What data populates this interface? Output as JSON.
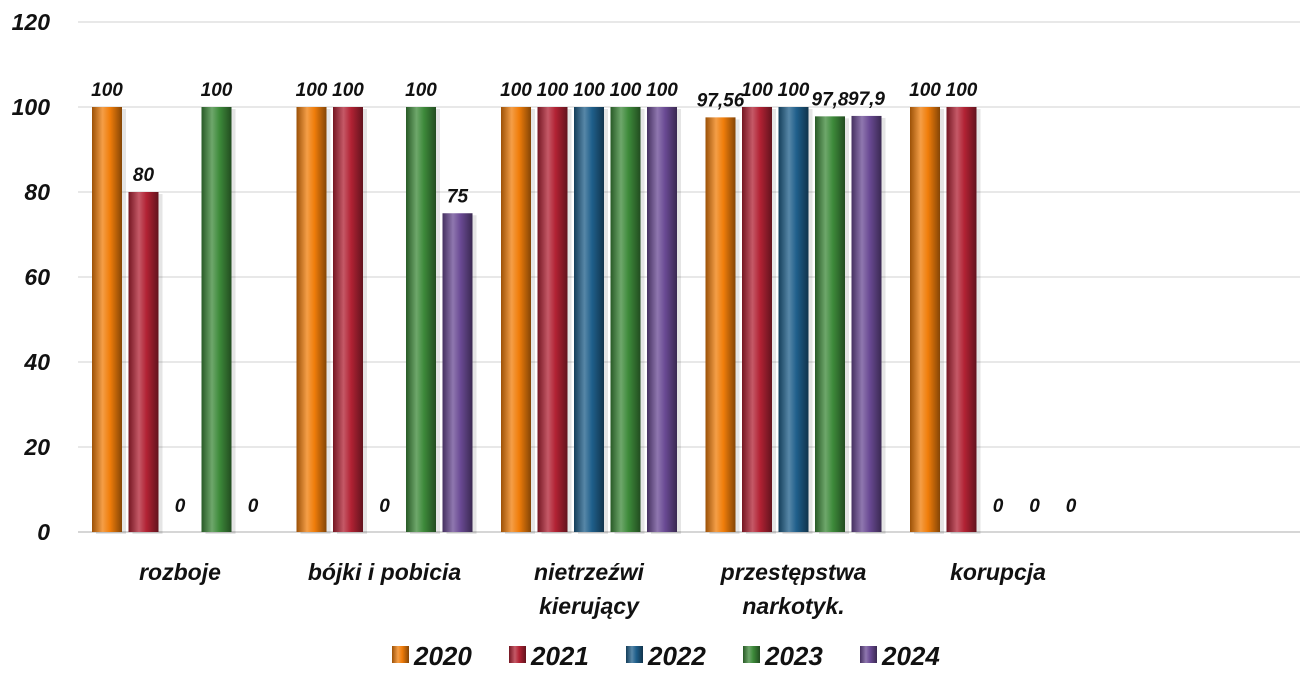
{
  "chart_data": {
    "type": "bar",
    "categories": [
      "rozboje",
      "bójki i pobicia",
      "nietrzeźwi kierujący",
      "przestępstwa narkotyk.",
      "korupcja"
    ],
    "category_lines": [
      [
        "rozboje"
      ],
      [
        "bójki i pobicia"
      ],
      [
        "nietrzeźwi",
        "kierujący"
      ],
      [
        "przestępstwa",
        "narkotyk."
      ],
      [
        "korupcja"
      ]
    ],
    "series": [
      {
        "name": "2020",
        "values": [
          100,
          100,
          100,
          97.56,
          100
        ],
        "labels": [
          "100",
          "100",
          "100",
          "97,56",
          "100"
        ]
      },
      {
        "name": "2021",
        "values": [
          80,
          100,
          100,
          100,
          100
        ],
        "labels": [
          "80",
          "100",
          "100",
          "100",
          "100"
        ]
      },
      {
        "name": "2022",
        "values": [
          0,
          0,
          100,
          100,
          0
        ],
        "labels": [
          "0",
          "0",
          "100",
          "100",
          "0"
        ]
      },
      {
        "name": "2023",
        "values": [
          100,
          100,
          100,
          97.8,
          0
        ],
        "labels": [
          "100",
          "100",
          "100",
          "97,8",
          "0"
        ]
      },
      {
        "name": "2024",
        "values": [
          0,
          75,
          100,
          97.9,
          0
        ],
        "labels": [
          "0",
          "75",
          "100",
          "97,9",
          "0"
        ]
      }
    ],
    "colors": [
      "#f07d0a",
      "#b22234",
      "#1f5f8b",
      "#3d8a3a",
      "#6a4a94"
    ],
    "ylim": [
      0,
      120
    ],
    "yticks": [
      0,
      20,
      40,
      60,
      80,
      100,
      120
    ],
    "grid": true,
    "legend_position": "bottom"
  }
}
